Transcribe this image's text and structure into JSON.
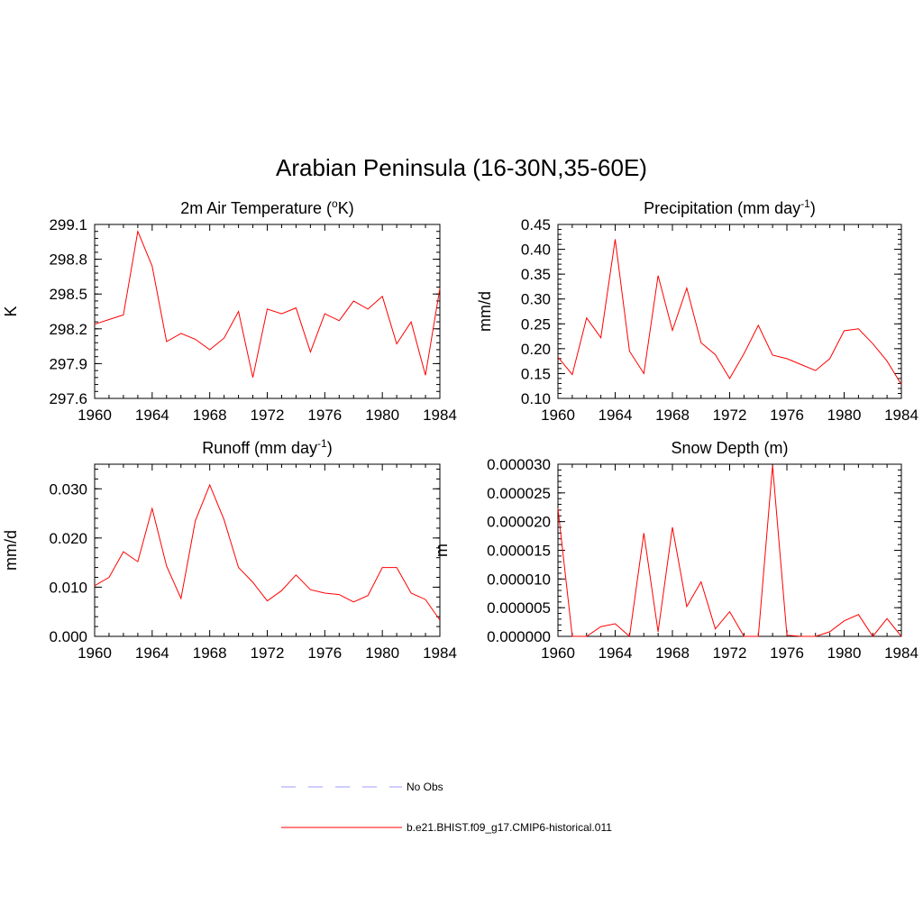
{
  "title": "Arabian Peninsula (16-30N,35-60E)",
  "colors": {
    "model": "#ff0000",
    "obs": "#9999ff"
  },
  "legend": [
    {
      "label": "No Obs",
      "style": "dashed",
      "color": "#9999ff"
    },
    {
      "label": "b.e21.BHIST.f09_g17.CMIP6-historical.011",
      "style": "solid",
      "color": "#ff0000"
    }
  ],
  "chart_data": [
    {
      "type": "line",
      "title": "2m Air Temperature (°K)",
      "title_parts": [
        "2m Air Temperature (",
        "o",
        "K)"
      ],
      "ylabel": "K",
      "xlim": [
        1960,
        1984
      ],
      "ylim": [
        297.6,
        299.1
      ],
      "xticks": [
        1960,
        1964,
        1968,
        1972,
        1976,
        1980,
        1984
      ],
      "yticks": [
        "297.6",
        "297.9",
        "298.2",
        "298.5",
        "298.8",
        "299.1"
      ],
      "x": [
        1960,
        1961,
        1962,
        1963,
        1964,
        1965,
        1966,
        1967,
        1968,
        1969,
        1970,
        1971,
        1972,
        1973,
        1974,
        1975,
        1976,
        1977,
        1978,
        1979,
        1980,
        1981,
        1982,
        1983,
        1984
      ],
      "series": [
        {
          "name": "b.e21.BHIST.f09_g17.CMIP6-historical.011",
          "values": [
            298.24,
            298.28,
            298.32,
            299.04,
            298.74,
            298.09,
            298.16,
            298.11,
            298.02,
            298.12,
            298.35,
            297.78,
            298.37,
            298.33,
            298.38,
            298.0,
            298.33,
            298.27,
            298.44,
            298.37,
            298.48,
            298.07,
            298.26,
            297.8,
            298.55
          ]
        }
      ]
    },
    {
      "type": "line",
      "title": "Precipitation (mm day-1)",
      "title_parts": [
        "Precipitation (mm day",
        "-1",
        ")"
      ],
      "ylabel": "mm/d",
      "xlim": [
        1960,
        1984
      ],
      "ylim": [
        0.1,
        0.45
      ],
      "xticks": [
        1960,
        1964,
        1968,
        1972,
        1976,
        1980,
        1984
      ],
      "yticks": [
        "0.10",
        "0.15",
        "0.20",
        "0.25",
        "0.30",
        "0.35",
        "0.40",
        "0.45"
      ],
      "x": [
        1960,
        1961,
        1962,
        1963,
        1964,
        1965,
        1966,
        1967,
        1968,
        1969,
        1970,
        1971,
        1972,
        1973,
        1974,
        1975,
        1976,
        1977,
        1978,
        1979,
        1980,
        1981,
        1982,
        1983,
        1984
      ],
      "series": [
        {
          "name": "b.e21.BHIST.f09_g17.CMIP6-historical.011",
          "values": [
            0.183,
            0.148,
            0.262,
            0.222,
            0.42,
            0.195,
            0.15,
            0.347,
            0.237,
            0.322,
            0.212,
            0.188,
            0.14,
            0.19,
            0.247,
            0.187,
            0.18,
            0.168,
            0.156,
            0.18,
            0.236,
            0.24,
            0.21,
            0.175,
            0.128
          ]
        }
      ]
    },
    {
      "type": "line",
      "title": "Runoff (mm day-1)",
      "title_parts": [
        "Runoff (mm day",
        "-1",
        ")"
      ],
      "ylabel": "mm/d",
      "xlim": [
        1960,
        1984
      ],
      "ylim": [
        0.0,
        0.035
      ],
      "xticks": [
        1960,
        1964,
        1968,
        1972,
        1976,
        1980,
        1984
      ],
      "yticks": [
        "0.000",
        "0.010",
        "0.020",
        "0.030"
      ],
      "ytick_values": [
        0.0,
        0.01,
        0.02,
        0.03
      ],
      "x": [
        1960,
        1961,
        1962,
        1963,
        1964,
        1965,
        1966,
        1967,
        1968,
        1969,
        1970,
        1971,
        1972,
        1973,
        1974,
        1975,
        1976,
        1977,
        1978,
        1979,
        1980,
        1981,
        1982,
        1983,
        1984
      ],
      "series": [
        {
          "name": "b.e21.BHIST.f09_g17.CMIP6-historical.011",
          "values": [
            0.0103,
            0.012,
            0.0172,
            0.0152,
            0.026,
            0.0143,
            0.0077,
            0.0235,
            0.0308,
            0.0237,
            0.014,
            0.011,
            0.0072,
            0.0093,
            0.0125,
            0.0095,
            0.0088,
            0.0085,
            0.007,
            0.0083,
            0.014,
            0.014,
            0.0088,
            0.0075,
            0.0033
          ]
        }
      ]
    },
    {
      "type": "line",
      "title": "Snow Depth (m)",
      "title_parts": [
        "Snow Depth (m)",
        "",
        ""
      ],
      "ylabel": "m",
      "xlim": [
        1960,
        1984
      ],
      "ylim": [
        0.0,
        3e-05
      ],
      "xticks": [
        1960,
        1964,
        1968,
        1972,
        1976,
        1980,
        1984
      ],
      "yticks": [
        "0.000000",
        "0.000005",
        "0.000010",
        "0.000015",
        "0.000020",
        "0.000025",
        "0.000030"
      ],
      "x": [
        1960,
        1961,
        1962,
        1963,
        1964,
        1965,
        1966,
        1967,
        1968,
        1969,
        1970,
        1971,
        1972,
        1973,
        1974,
        1975,
        1976,
        1977,
        1978,
        1979,
        1980,
        1981,
        1982,
        1983,
        1984
      ],
      "series": [
        {
          "name": "b.e21.BHIST.f09_g17.CMIP6-historical.011",
          "values": [
            2.23e-05,
            0.0,
            0.0,
            1.7e-06,
            2.2e-06,
            0.0,
            1.8e-05,
            8e-07,
            1.9e-05,
            5.2e-06,
            9.5e-06,
            1.3e-06,
            4.3e-06,
            0.0,
            0.0,
            2.98e-05,
            2e-07,
            0.0,
            0.0,
            8e-07,
            2.7e-06,
            3.8e-06,
            0.0,
            3.1e-06,
            0.0
          ]
        }
      ]
    }
  ]
}
